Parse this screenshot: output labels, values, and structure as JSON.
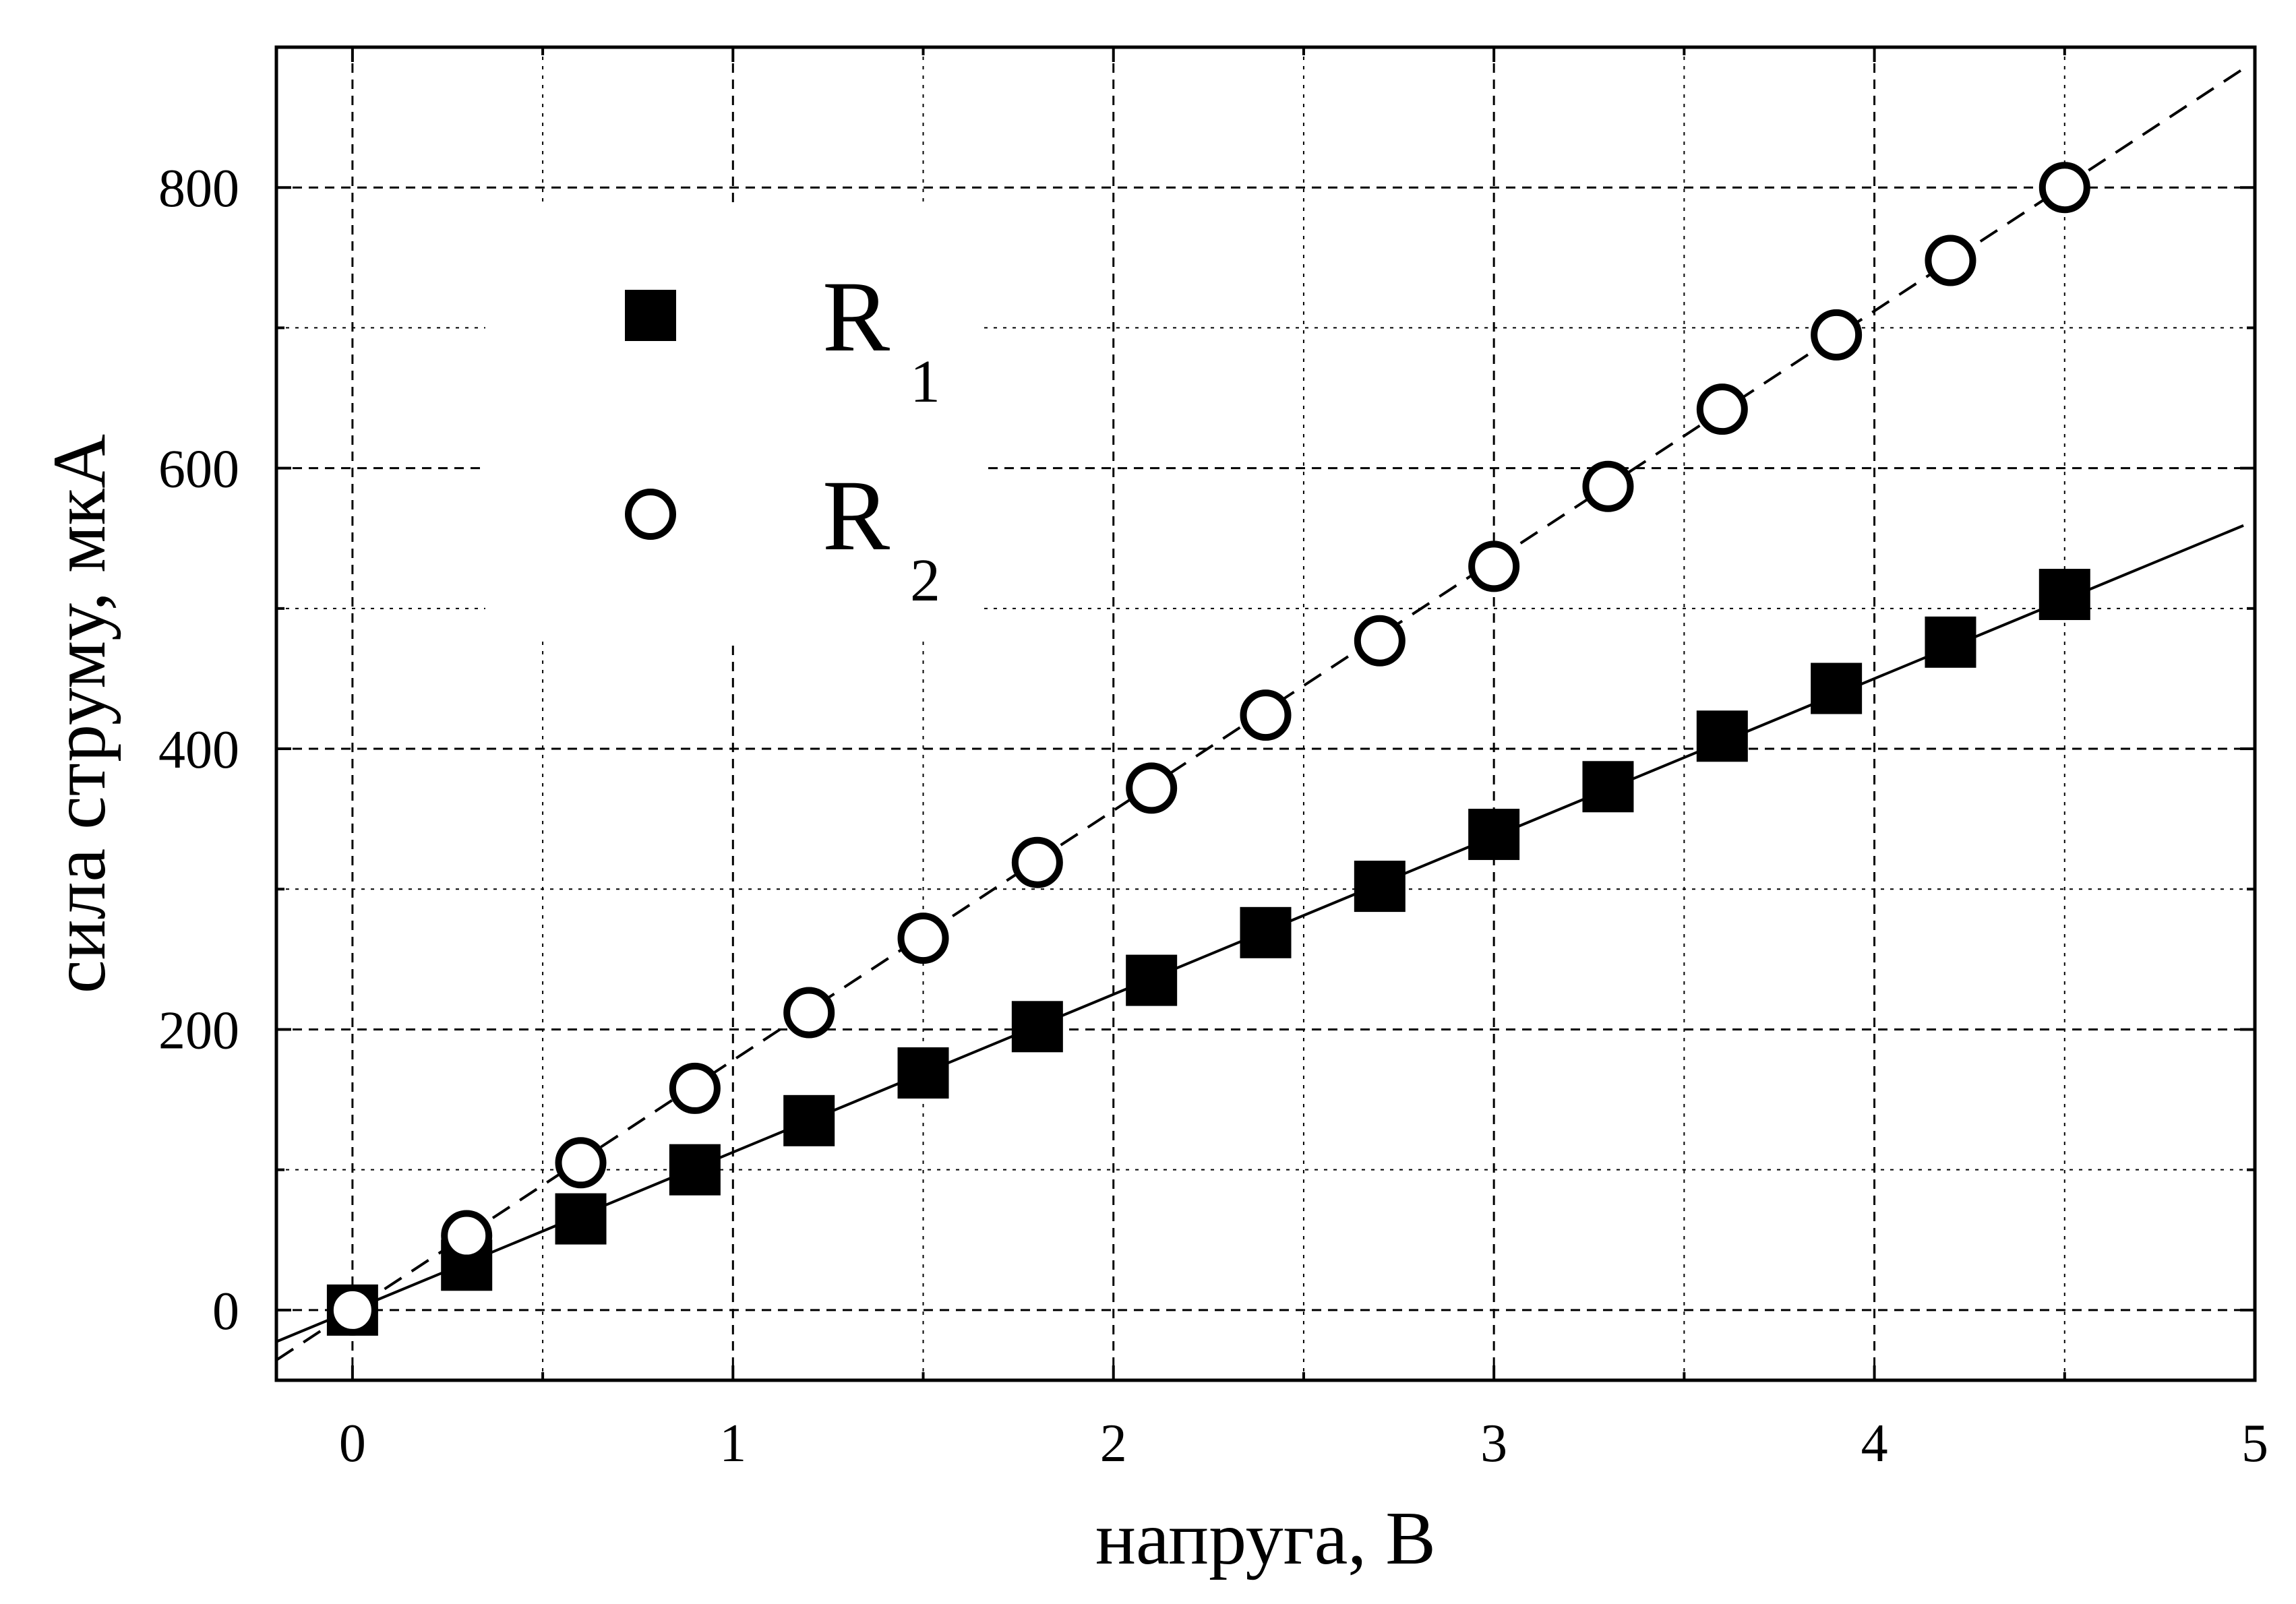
{
  "chart_data": {
    "type": "scatter",
    "xlabel": "напруга, В",
    "ylabel": "сила струму, мкА",
    "xlim": [
      -0.2,
      5
    ],
    "ylim": [
      -50,
      900
    ],
    "x_ticks": [
      0,
      1,
      2,
      3,
      4,
      5
    ],
    "x_tick_labels": [
      "0",
      "1",
      "2",
      "3",
      "4",
      "5"
    ],
    "y_ticks": [
      0,
      200,
      400,
      600,
      800
    ],
    "y_tick_labels": [
      "0",
      "200",
      "400",
      "600",
      "800"
    ],
    "x_grid": [
      0,
      0.5,
      1,
      1.5,
      2,
      2.5,
      3,
      3.5,
      4,
      4.5
    ],
    "y_grid": [
      0,
      100,
      200,
      300,
      400,
      500,
      600,
      700,
      800
    ],
    "grid": true,
    "legend_position": "top-left",
    "series": [
      {
        "name": "R",
        "subscript": "1",
        "marker": "filled-square",
        "fit_line": "solid",
        "fit": {
          "slope": 112.5,
          "intercept": 0
        },
        "x": [
          0,
          0.3,
          0.6,
          0.9,
          1.2,
          1.5,
          1.8,
          2.1,
          2.4,
          2.7,
          3.0,
          3.3,
          3.6,
          3.9,
          4.2,
          4.5
        ],
        "y": [
          0,
          32,
          65,
          100,
          135,
          169,
          202,
          235,
          269,
          302,
          339,
          373,
          409,
          443,
          476,
          510
        ]
      },
      {
        "name": "R",
        "subscript": "2",
        "marker": "open-circle",
        "fit_line": "dashed",
        "fit": {
          "slope": 178,
          "intercept": 0
        },
        "x": [
          0,
          0.3,
          0.6,
          0.9,
          1.2,
          1.5,
          1.8,
          2.1,
          2.4,
          2.7,
          3.0,
          3.3,
          3.6,
          3.9,
          4.2,
          4.5
        ],
        "y": [
          0,
          53,
          105,
          158,
          212,
          265,
          319,
          372,
          424,
          477,
          530,
          587,
          642,
          695,
          748,
          800
        ]
      }
    ],
    "colors": {
      "axis": "#000000",
      "grid": "#000000",
      "marker": "#000000"
    }
  }
}
